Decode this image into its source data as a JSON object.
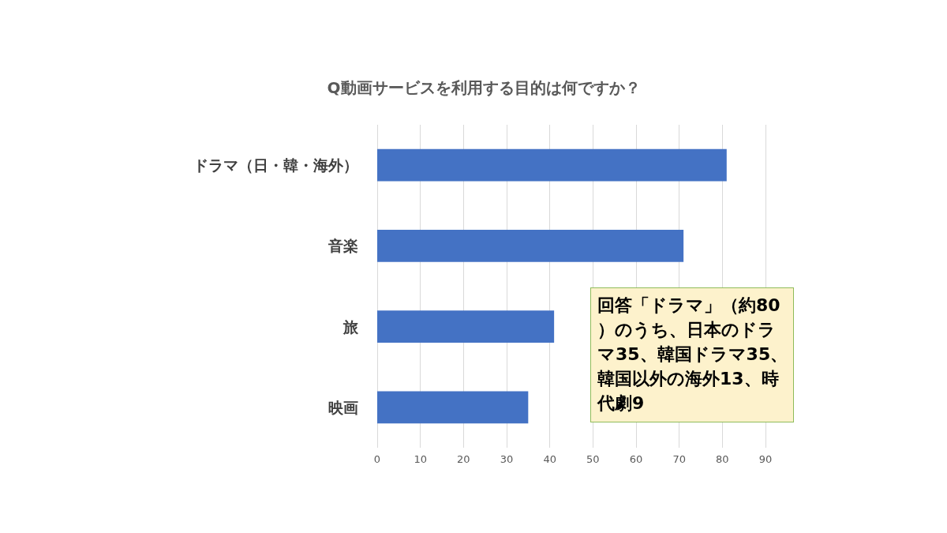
{
  "chart_data": {
    "type": "bar",
    "orientation": "horizontal",
    "title": "Q動画サービスを利用する目的は何ですか？",
    "categories": [
      "ドラマ（日・韓・海外）",
      "音楽",
      "旅",
      "映画"
    ],
    "values": [
      81,
      71,
      41,
      35
    ],
    "color": "#4472c4",
    "xlim": [
      0,
      90
    ],
    "xticks": [
      0,
      10,
      20,
      30,
      40,
      50,
      60,
      70,
      80,
      90
    ],
    "grid": "x",
    "annotations": [
      "回答「ドラマ」（約80）のうち、日本のドラマ35、韓国ドラマ35、韓国以外の海外13、時代劇9"
    ]
  }
}
